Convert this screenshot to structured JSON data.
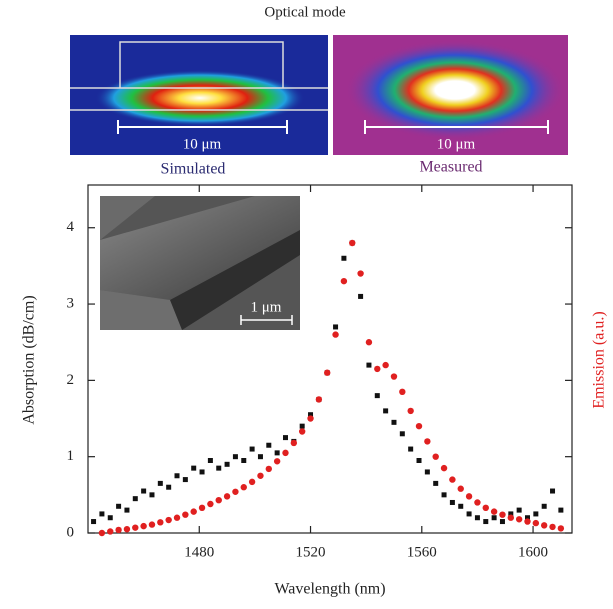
{
  "chart_data": {
    "type": "scatter",
    "title": "Optical mode",
    "inset_labels": [
      "Simulated",
      "Measured"
    ],
    "scale_labels": [
      "10 μm",
      "10 μm",
      "1 μm"
    ],
    "x_label": "Wavelength (nm)",
    "y_label": "Absorption (dB/cm)",
    "y2_label": "Emission (a.u.)",
    "xlim": [
      1440,
      1614
    ],
    "xticks": [
      1480,
      1520,
      1560,
      1600
    ],
    "ylim": [
      0,
      4.56
    ],
    "yticks": [
      0,
      1,
      2,
      3,
      4
    ],
    "series": [
      {
        "color": "#111111",
        "marker": "square",
        "x": [
          1442,
          1445,
          1448,
          1451,
          1454,
          1457,
          1460,
          1463,
          1466,
          1469,
          1472,
          1475,
          1478,
          1481,
          1484,
          1487,
          1490,
          1493,
          1496,
          1499,
          1502,
          1505,
          1508,
          1511,
          1514,
          1517,
          1520,
          1523,
          1526,
          1529,
          1532,
          1535,
          1538,
          1541,
          1544,
          1547,
          1550,
          1553,
          1556,
          1559,
          1562,
          1565,
          1568,
          1571,
          1574,
          1577,
          1580,
          1583,
          1586,
          1589,
          1592,
          1595,
          1598,
          1601,
          1604,
          1607,
          1610
        ],
        "values": [
          0.15,
          0.25,
          0.2,
          0.35,
          0.3,
          0.45,
          0.55,
          0.5,
          0.65,
          0.6,
          0.75,
          0.7,
          0.85,
          0.8,
          0.95,
          0.85,
          0.9,
          1.0,
          0.95,
          1.1,
          1.0,
          1.15,
          1.05,
          1.25,
          1.2,
          1.4,
          1.55,
          1.75,
          2.1,
          2.7,
          3.6,
          3.8,
          3.1,
          2.2,
          1.8,
          1.6,
          1.45,
          1.3,
          1.1,
          0.95,
          0.8,
          0.65,
          0.5,
          0.4,
          0.35,
          0.25,
          0.2,
          0.15,
          0.2,
          0.15,
          0.25,
          0.3,
          0.2,
          0.25,
          0.35,
          0.55,
          0.3
        ]
      },
      {
        "color": "#e02020",
        "marker": "circle",
        "x": [
          1445,
          1448,
          1451,
          1454,
          1457,
          1460,
          1463,
          1466,
          1469,
          1472,
          1475,
          1478,
          1481,
          1484,
          1487,
          1490,
          1493,
          1496,
          1499,
          1502,
          1505,
          1508,
          1511,
          1514,
          1517,
          1520,
          1523,
          1526,
          1529,
          1532,
          1535,
          1538,
          1541,
          1544,
          1547,
          1550,
          1553,
          1556,
          1559,
          1562,
          1565,
          1568,
          1571,
          1574,
          1577,
          1580,
          1583,
          1586,
          1589,
          1592,
          1595,
          1598,
          1601,
          1604,
          1607,
          1610
        ],
        "values": [
          0,
          0.02,
          0.04,
          0.05,
          0.07,
          0.09,
          0.11,
          0.14,
          0.17,
          0.2,
          0.24,
          0.28,
          0.33,
          0.38,
          0.43,
          0.48,
          0.54,
          0.6,
          0.67,
          0.75,
          0.84,
          0.94,
          1.05,
          1.18,
          1.33,
          1.5,
          1.75,
          2.1,
          2.6,
          3.3,
          3.8,
          3.4,
          2.5,
          2.15,
          2.2,
          2.05,
          1.85,
          1.6,
          1.4,
          1.2,
          1.0,
          0.85,
          0.7,
          0.58,
          0.48,
          0.4,
          0.33,
          0.28,
          0.24,
          0.2,
          0.18,
          0.15,
          0.13,
          0.1,
          0.08,
          0.06
        ]
      }
    ]
  }
}
